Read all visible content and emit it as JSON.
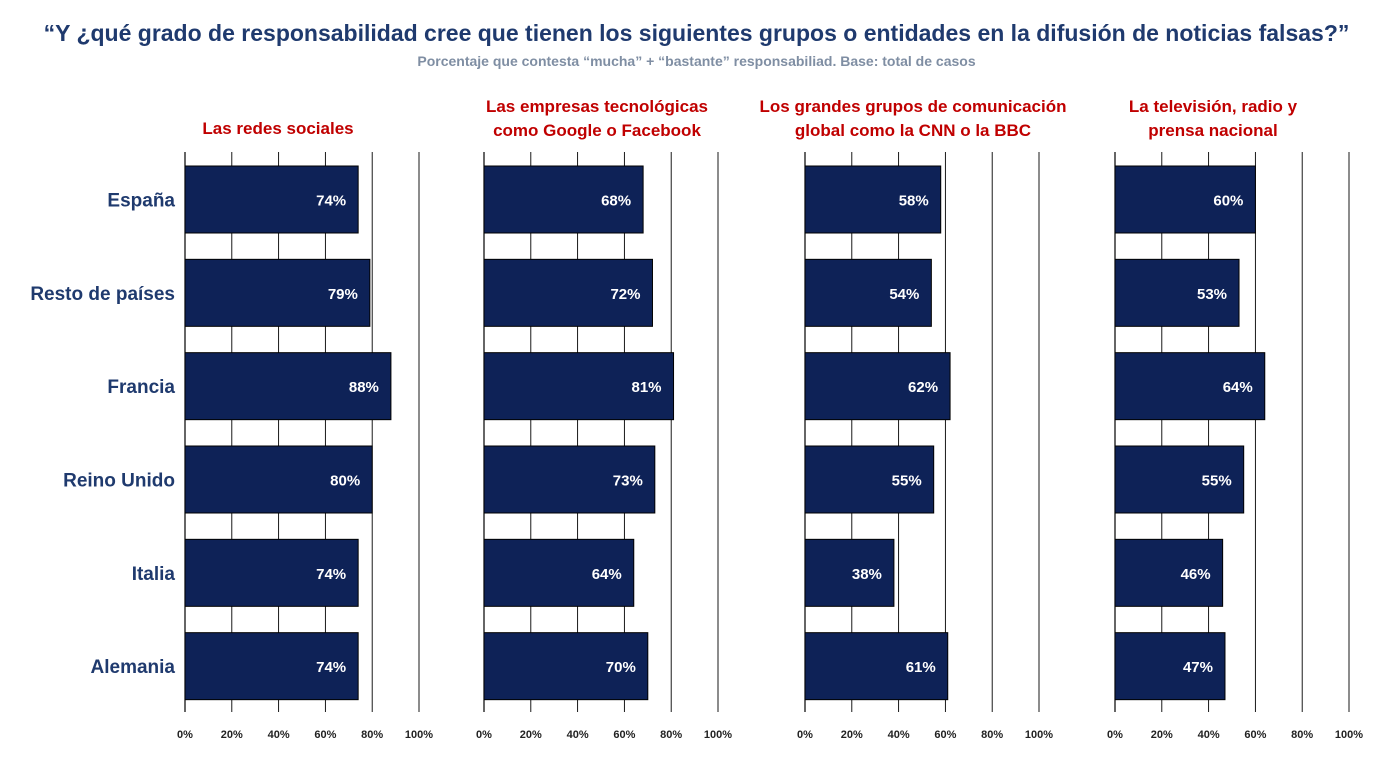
{
  "title": "“Y ¿qué grado de responsabilidad cree que tienen los siguientes grupos o entidades en la difusión de noticias falsas?”",
  "subtitle": "Porcentaje que contesta  “mucha” + “bastante” responsabiliad. Base: total de casos",
  "page_number": "",
  "colors": {
    "title": "#1f3a6e",
    "subtitle": "#7f8ea3",
    "panel_title": "#c00000",
    "bar": "#0e2257",
    "bar_label": "#ffffff",
    "category": "#1f3a6e"
  },
  "chart_data": [
    {
      "type": "bar",
      "orientation": "horizontal",
      "title": [
        "Las redes sociales"
      ],
      "categories": [
        "España",
        "Resto de países",
        "Francia",
        "Reino Unido",
        "Italia",
        "Alemania"
      ],
      "values": [
        74,
        79,
        88,
        80,
        74,
        74
      ],
      "value_labels": [
        "74%",
        "79%",
        "88%",
        "80%",
        "74%",
        "74%"
      ],
      "xlim": [
        0,
        100
      ],
      "xticks": [
        "0%",
        "20%",
        "40%",
        "60%",
        "80%",
        "100%"
      ],
      "grid": true
    },
    {
      "type": "bar",
      "orientation": "horizontal",
      "title": [
        "Las empresas tecnológicas",
        "como Google o Facebook"
      ],
      "categories": [
        "España",
        "Resto de países",
        "Francia",
        "Reino Unido",
        "Italia",
        "Alemania"
      ],
      "values": [
        68,
        72,
        81,
        73,
        64,
        70
      ],
      "value_labels": [
        "68%",
        "72%",
        "81%",
        "73%",
        "64%",
        "70%"
      ],
      "xlim": [
        0,
        100
      ],
      "xticks": [
        "0%",
        "20%",
        "40%",
        "60%",
        "80%",
        "100%"
      ],
      "grid": true
    },
    {
      "type": "bar",
      "orientation": "horizontal",
      "title": [
        "Los grandes grupos de comunicación",
        "global como la CNN o la BBC"
      ],
      "categories": [
        "España",
        "Resto de países",
        "Francia",
        "Reino Unido",
        "Italia",
        "Alemania"
      ],
      "values": [
        58,
        54,
        62,
        55,
        38,
        61
      ],
      "value_labels": [
        "58%",
        "54%",
        "62%",
        "55%",
        "38%",
        "61%"
      ],
      "xlim": [
        0,
        100
      ],
      "xticks": [
        "0%",
        "20%",
        "40%",
        "60%",
        "80%",
        "100%"
      ],
      "grid": true
    },
    {
      "type": "bar",
      "orientation": "horizontal",
      "title": [
        "La televisión, radio y",
        "prensa nacional"
      ],
      "categories": [
        "España",
        "Resto de países",
        "Francia",
        "Reino Unido",
        "Italia",
        "Alemania"
      ],
      "values": [
        60,
        53,
        64,
        55,
        46,
        47
      ],
      "value_labels": [
        "60%",
        "53%",
        "64%",
        "55%",
        "46%",
        "47%"
      ],
      "xlim": [
        0,
        100
      ],
      "xticks": [
        "0%",
        "20%",
        "40%",
        "60%",
        "80%",
        "100%"
      ],
      "grid": true
    }
  ]
}
